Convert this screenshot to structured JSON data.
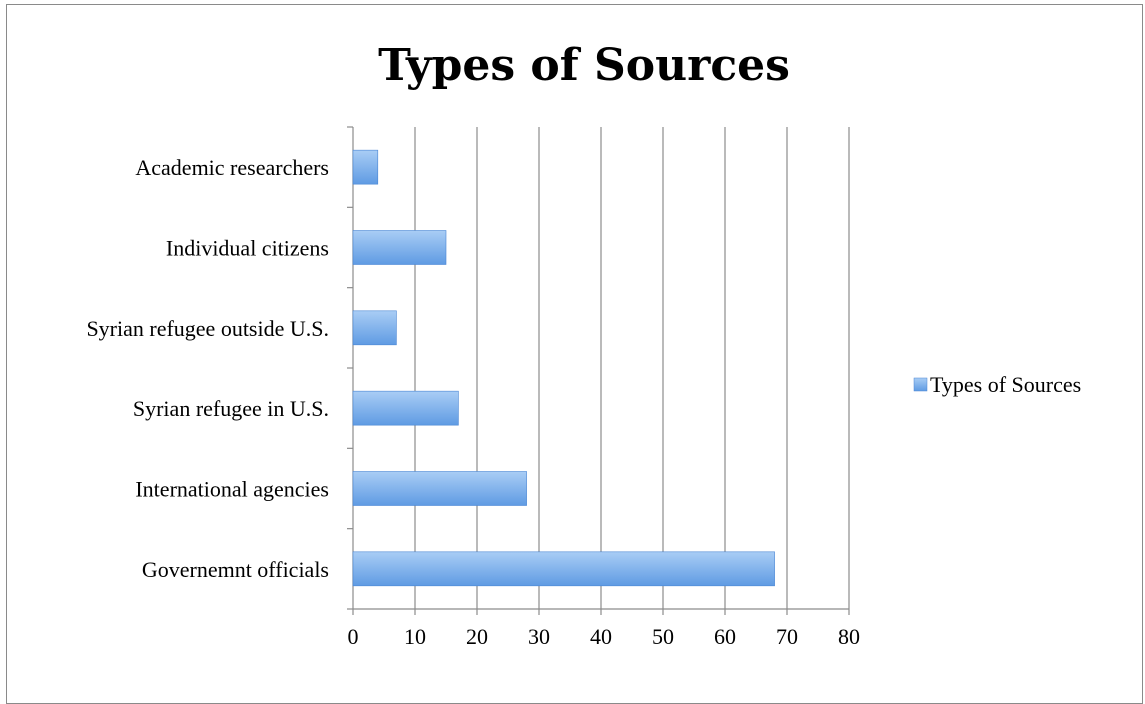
{
  "chart_data": {
    "type": "bar",
    "orientation": "horizontal",
    "title": "Types of Sources",
    "categories": [
      "Academic researchers",
      "Individual citizens",
      "Syrian refugee outside U.S.",
      "Syrian refugee in U.S.",
      "International agencies",
      "Governemnt officials"
    ],
    "series": [
      {
        "name": "Types of Sources",
        "values": [
          4,
          15,
          7,
          17,
          28,
          68
        ]
      }
    ],
    "xlim": [
      0,
      80
    ],
    "x_ticks": [
      0,
      10,
      20,
      30,
      40,
      50,
      60,
      70,
      80
    ],
    "xlabel": "",
    "ylabel": "",
    "grid": "vertical",
    "legend_position": "right",
    "colors": {
      "bar_top": "#a9cdf5",
      "bar_bottom": "#5f9be3",
      "bar_edge": "#4a86d4",
      "grid": "#8c8c8c"
    }
  }
}
